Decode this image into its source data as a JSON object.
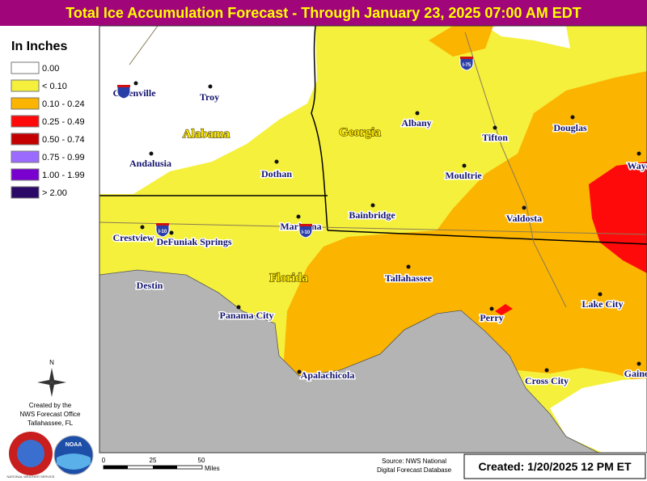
{
  "title": "Total Ice Accumulation Forecast - Through January 23, 2025 07:00 AM EDT",
  "legend": {
    "title": "In Inches",
    "items": [
      {
        "label": "0.00",
        "color": "#ffffff"
      },
      {
        "label": "< 0.10",
        "color": "#f5f03c"
      },
      {
        "label": "0.10 - 0.24",
        "color": "#fbb400"
      },
      {
        "label": "0.25 - 0.49",
        "color": "#ff0a0a"
      },
      {
        "label": "0.50 - 0.74",
        "color": "#c40000"
      },
      {
        "label": "0.75 - 0.99",
        "color": "#9b6bff"
      },
      {
        "label": "1.00 - 1.99",
        "color": "#7a00d0"
      },
      {
        "label": "> 2.00",
        "color": "#2a0a66"
      }
    ]
  },
  "states": [
    "Alabama",
    "Georgia",
    "Florida"
  ],
  "cities": [
    "Greenville",
    "Troy",
    "Andalusia",
    "Dothan",
    "Albany",
    "Tifton",
    "Douglas",
    "Moultrie",
    "Waycross",
    "Bainbridge",
    "Marianna",
    "Crestview",
    "DeFuniak Springs",
    "Valdosta",
    "Destin",
    "Panama City",
    "Tallahassee",
    "Perry",
    "Lake City",
    "Apalachicola",
    "Cross City",
    "Gainesville"
  ],
  "highways": [
    "I-10",
    "I-10",
    "I-75"
  ],
  "compass": "N",
  "credit": [
    "Created by the",
    "NWS Forecast Office",
    "Tallahassee, FL"
  ],
  "logos": [
    "NATIONAL WEATHER SERVICE",
    "NOAA"
  ],
  "scale": {
    "ticks": [
      "0",
      "25",
      "50"
    ],
    "unit": "Miles"
  },
  "source": [
    "Source: NWS National",
    "Digital Forecast Database"
  ],
  "created": "Created: 1/20/2025 12 PM ET"
}
